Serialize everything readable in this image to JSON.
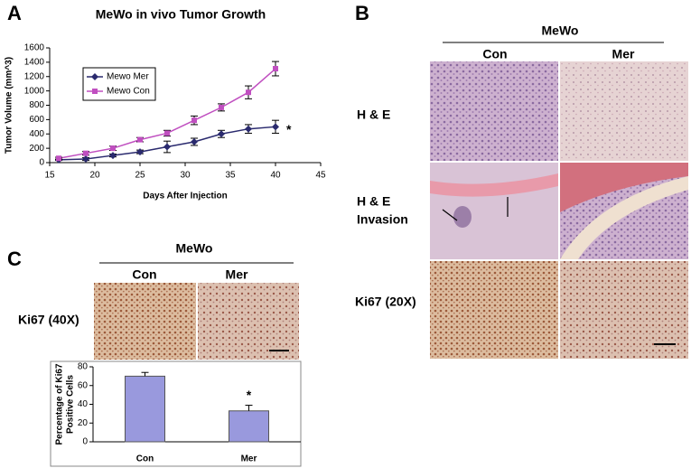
{
  "figure": {
    "panel_a": "A",
    "panel_b": "B",
    "panel_c": "C",
    "b_group": "MeWo",
    "b_col_con": "Con",
    "b_col_mer": "Mer",
    "b_row_he": "H & E",
    "b_row_inv": [
      "H & E",
      "Invasion"
    ],
    "b_row_ki": "Ki67 (20X)",
    "c_group": "MeWo",
    "c_col_con": "Con",
    "c_col_mer": "Mer",
    "c_row_ki": "Ki67 (40X)"
  },
  "chart_data": [
    {
      "type": "line",
      "title": "MeWo in vivo Tumor Growth",
      "xlabel": "Days After Injection",
      "ylabel": "Tumor Volume (mm^3)",
      "x": [
        16,
        19,
        22,
        25,
        28,
        31,
        34,
        37,
        40
      ],
      "series": [
        {
          "name": "Mewo Mer",
          "color": "#2a2a6e",
          "marker": "diamond",
          "values": [
            40,
            50,
            100,
            150,
            220,
            290,
            400,
            470,
            500
          ],
          "errors": [
            10,
            20,
            20,
            25,
            80,
            50,
            50,
            60,
            90
          ]
        },
        {
          "name": "Mewo Con",
          "color": "#c04fc0",
          "marker": "square",
          "values": [
            60,
            130,
            200,
            320,
            410,
            590,
            770,
            980,
            1310
          ],
          "errors": [
            15,
            25,
            30,
            30,
            40,
            60,
            50,
            90,
            100
          ]
        }
      ],
      "xlim": [
        15,
        45
      ],
      "xticks": [
        15,
        20,
        25,
        30,
        35,
        40,
        45
      ],
      "ylim": [
        0,
        1600
      ],
      "yticks": [
        0,
        200,
        400,
        600,
        800,
        1000,
        1200,
        1400,
        1600
      ],
      "annotation": "*",
      "legend": "upper left"
    },
    {
      "type": "bar",
      "ylabel": [
        "Percentage of Ki67",
        "Positive Cells"
      ],
      "categories": [
        "Con",
        "Mer"
      ],
      "values": [
        70,
        33
      ],
      "errors": [
        4,
        6
      ],
      "color": "#9999dd",
      "ylim": [
        0,
        80
      ],
      "yticks": [
        0,
        20,
        40,
        60,
        80
      ],
      "annotation": "*"
    }
  ]
}
